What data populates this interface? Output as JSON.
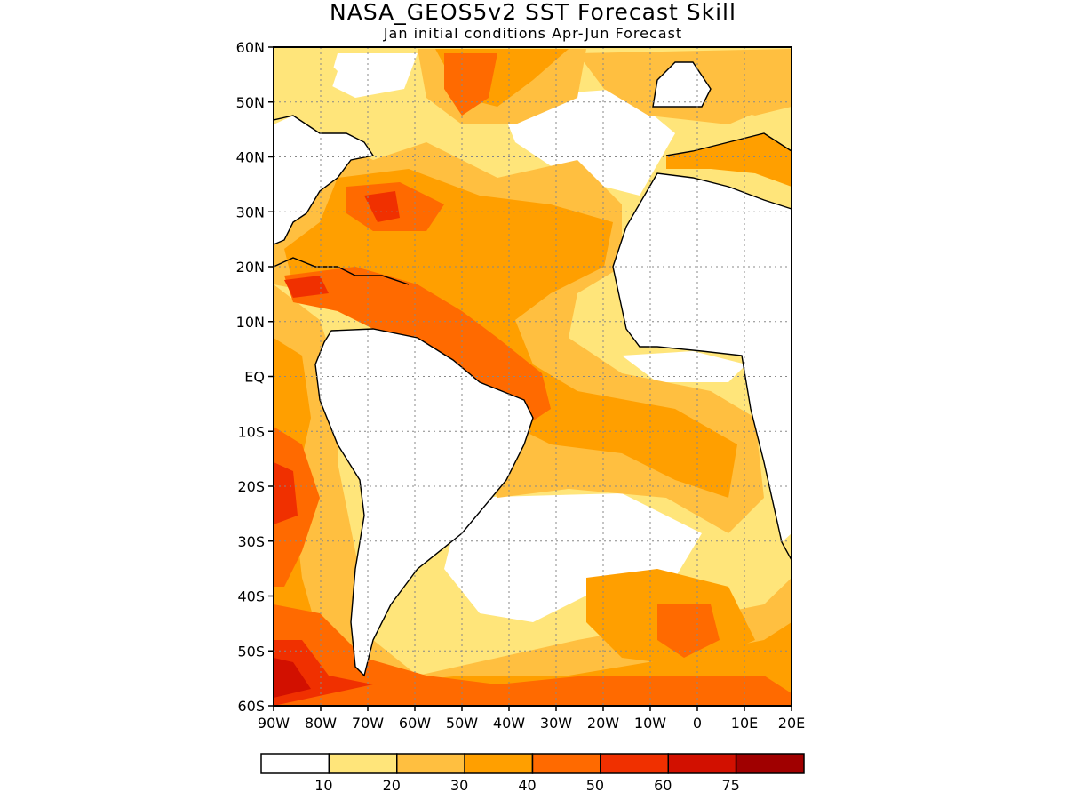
{
  "title": "NASA_GEOS5v2 SST Forecast Skill",
  "subtitle": "Jan initial conditions  Apr-Jun Forecast",
  "axes": {
    "lat_labels": [
      "60N",
      "50N",
      "40N",
      "30N",
      "20N",
      "10N",
      "EQ",
      "10S",
      "20S",
      "30S",
      "40S",
      "50S",
      "60S"
    ],
    "lon_labels": [
      "90W",
      "80W",
      "70W",
      "60W",
      "50W",
      "40W",
      "30W",
      "20W",
      "10W",
      "0",
      "10E",
      "20E"
    ],
    "lat_range": [
      -60,
      60
    ],
    "lon_range": [
      -90,
      20
    ],
    "grid": "dotted"
  },
  "colorbar": {
    "colors": [
      "#ffffff",
      "#ffe57a",
      "#ffbf40",
      "#ff9f00",
      "#ff6a00",
      "#f03000",
      "#d21000",
      "#a00000"
    ],
    "labels": [
      "10",
      "20",
      "30",
      "40",
      "50",
      "60",
      "75"
    ]
  }
}
